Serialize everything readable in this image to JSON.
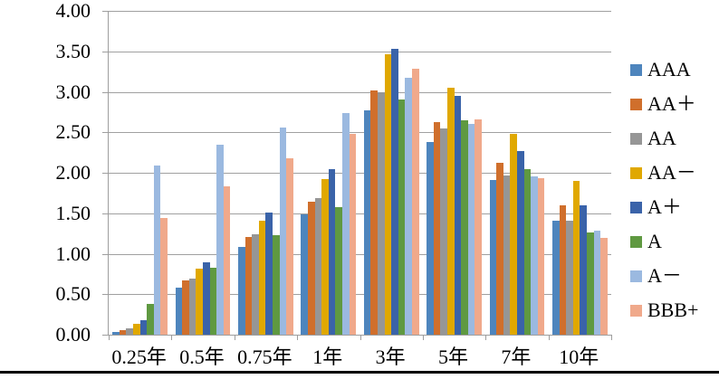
{
  "chart_data": {
    "type": "bar",
    "title": "",
    "xlabel": "",
    "ylabel": "",
    "categories": [
      "0.25年",
      "0.5年",
      "0.75年",
      "1年",
      "3年",
      "5年",
      "7年",
      "10年"
    ],
    "series": [
      {
        "name": "AAA",
        "color": "#4e85bd",
        "values": [
          0.03,
          0.58,
          1.08,
          1.49,
          2.77,
          2.38,
          1.91,
          1.41
        ]
      },
      {
        "name": "AA＋",
        "color": "#d06f2c",
        "values": [
          0.06,
          0.67,
          1.21,
          1.64,
          3.02,
          2.63,
          2.12,
          1.6
        ]
      },
      {
        "name": "AA",
        "color": "#969696",
        "values": [
          0.08,
          0.69,
          1.24,
          1.69,
          3.0,
          2.55,
          1.97,
          1.41
        ]
      },
      {
        "name": "AA－",
        "color": "#e0a800",
        "values": [
          0.13,
          0.82,
          1.41,
          1.92,
          3.46,
          3.05,
          2.48,
          1.9
        ]
      },
      {
        "name": "A＋",
        "color": "#3a63a9",
        "values": [
          0.18,
          0.89,
          1.51,
          2.04,
          3.53,
          2.95,
          2.27,
          1.6
        ]
      },
      {
        "name": "A",
        "color": "#5f9941",
        "values": [
          0.38,
          0.83,
          1.23,
          1.58,
          2.9,
          2.65,
          2.05,
          1.26
        ]
      },
      {
        "name": "A－",
        "color": "#9bb9e0",
        "values": [
          2.09,
          2.35,
          2.56,
          2.74,
          3.17,
          2.6,
          1.96,
          1.28
        ]
      },
      {
        "name": "BBB+",
        "color": "#f0a98b",
        "values": [
          1.44,
          1.83,
          2.18,
          2.48,
          3.28,
          2.66,
          1.93,
          1.19
        ]
      }
    ],
    "ylim": [
      0,
      4
    ],
    "ytick_step": 0.5,
    "ytick_labels": [
      "0.00",
      "0.50",
      "1.00",
      "1.50",
      "2.00",
      "2.50",
      "3.00",
      "3.50",
      "4.00"
    ],
    "grid": true,
    "legend_position": "right",
    "axis_color": "#9e9e9e",
    "grid_color": "#a0a0a0"
  }
}
